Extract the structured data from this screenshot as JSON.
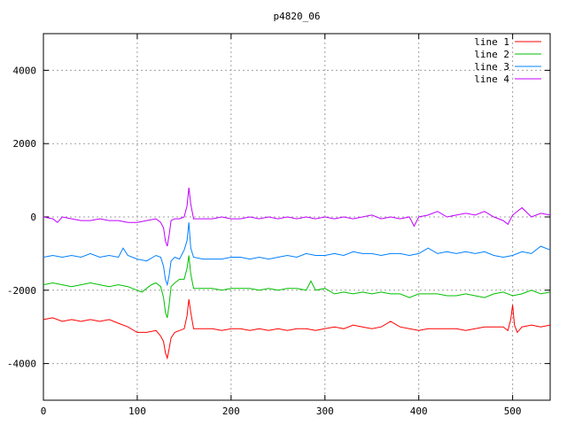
{
  "chart_data": {
    "type": "line",
    "title": "p4820_06",
    "xlabel": "",
    "ylabel": "",
    "xlim": [
      0,
      540
    ],
    "ylim": [
      -5000,
      5000
    ],
    "xticks": [
      0,
      100,
      200,
      300,
      400,
      500
    ],
    "yticks": [
      -4000,
      -2000,
      0,
      2000,
      4000
    ],
    "grid": true,
    "legend_position": "top-right",
    "series": [
      {
        "name": "line 1",
        "color": "#ff0000",
        "x": [
          0,
          10,
          20,
          30,
          40,
          50,
          60,
          70,
          80,
          90,
          100,
          110,
          120,
          125,
          128,
          130,
          132,
          134,
          136,
          140,
          145,
          150,
          153,
          155,
          157,
          160,
          170,
          180,
          190,
          200,
          210,
          220,
          230,
          240,
          250,
          260,
          270,
          280,
          290,
          300,
          310,
          320,
          330,
          340,
          350,
          360,
          370,
          380,
          390,
          400,
          410,
          420,
          430,
          440,
          450,
          460,
          470,
          480,
          490,
          495,
          498,
          500,
          502,
          505,
          510,
          520,
          530,
          540
        ],
        "y": [
          -2800,
          -2750,
          -2850,
          -2800,
          -2850,
          -2800,
          -2850,
          -2800,
          -2900,
          -3000,
          -3150,
          -3150,
          -3100,
          -3250,
          -3400,
          -3700,
          -3850,
          -3600,
          -3300,
          -3150,
          -3100,
          -3050,
          -2700,
          -2250,
          -2600,
          -3050,
          -3050,
          -3050,
          -3100,
          -3050,
          -3050,
          -3100,
          -3050,
          -3100,
          -3050,
          -3100,
          -3050,
          -3050,
          -3100,
          -3050,
          -3000,
          -3050,
          -2950,
          -3000,
          -3050,
          -3000,
          -2850,
          -3000,
          -3050,
          -3100,
          -3050,
          -3050,
          -3050,
          -3050,
          -3100,
          -3050,
          -3000,
          -3000,
          -3000,
          -3100,
          -2800,
          -2400,
          -2950,
          -3150,
          -3000,
          -2950,
          -3000,
          -2950
        ]
      },
      {
        "name": "line 2",
        "color": "#00c000",
        "x": [
          0,
          10,
          20,
          30,
          40,
          50,
          60,
          70,
          80,
          90,
          100,
          105,
          110,
          115,
          120,
          125,
          128,
          130,
          132,
          134,
          136,
          140,
          145,
          150,
          153,
          155,
          157,
          160,
          170,
          180,
          190,
          200,
          210,
          220,
          230,
          240,
          250,
          260,
          270,
          280,
          285,
          290,
          300,
          310,
          320,
          330,
          340,
          350,
          360,
          370,
          380,
          390,
          400,
          410,
          420,
          430,
          440,
          450,
          460,
          470,
          480,
          490,
          500,
          510,
          520,
          530,
          540
        ],
        "y": [
          -1850,
          -1800,
          -1850,
          -1900,
          -1850,
          -1800,
          -1850,
          -1900,
          -1850,
          -1900,
          -2000,
          -2050,
          -1950,
          -1850,
          -1800,
          -1900,
          -2200,
          -2600,
          -2750,
          -2400,
          -1900,
          -1800,
          -1700,
          -1700,
          -1400,
          -1050,
          -1550,
          -1950,
          -1950,
          -1950,
          -2000,
          -1950,
          -1950,
          -1950,
          -2000,
          -1950,
          -2000,
          -1950,
          -1950,
          -2000,
          -1750,
          -2000,
          -1950,
          -2100,
          -2050,
          -2100,
          -2050,
          -2100,
          -2050,
          -2100,
          -2100,
          -2200,
          -2100,
          -2100,
          -2100,
          -2150,
          -2150,
          -2100,
          -2150,
          -2200,
          -2100,
          -2050,
          -2150,
          -2100,
          -2000,
          -2100,
          -2050
        ]
      },
      {
        "name": "line 3",
        "color": "#0080ff",
        "x": [
          0,
          10,
          20,
          30,
          40,
          50,
          60,
          70,
          80,
          85,
          90,
          100,
          110,
          120,
          125,
          128,
          130,
          132,
          134,
          136,
          140,
          145,
          150,
          153,
          155,
          157,
          160,
          170,
          180,
          190,
          200,
          210,
          220,
          230,
          240,
          250,
          260,
          270,
          280,
          290,
          300,
          310,
          320,
          330,
          340,
          350,
          360,
          370,
          380,
          390,
          400,
          410,
          420,
          430,
          440,
          450,
          460,
          470,
          480,
          490,
          500,
          510,
          520,
          530,
          540
        ],
        "y": [
          -1100,
          -1050,
          -1100,
          -1050,
          -1100,
          -1000,
          -1100,
          -1050,
          -1100,
          -850,
          -1050,
          -1150,
          -1200,
          -1050,
          -1100,
          -1350,
          -1700,
          -1850,
          -1600,
          -1200,
          -1100,
          -1150,
          -900,
          -650,
          -150,
          -850,
          -1100,
          -1150,
          -1150,
          -1150,
          -1100,
          -1100,
          -1150,
          -1100,
          -1150,
          -1100,
          -1050,
          -1100,
          -1000,
          -1050,
          -1050,
          -1000,
          -1050,
          -950,
          -1000,
          -1000,
          -1050,
          -1000,
          -1000,
          -1050,
          -1000,
          -850,
          -1000,
          -950,
          -1000,
          -950,
          -1000,
          -950,
          -1050,
          -1100,
          -1050,
          -950,
          -1000,
          -800,
          -900
        ]
      },
      {
        "name": "line 4",
        "color": "#c000ff",
        "x": [
          0,
          10,
          15,
          20,
          30,
          40,
          50,
          60,
          70,
          80,
          90,
          100,
          110,
          120,
          125,
          128,
          130,
          132,
          134,
          136,
          140,
          145,
          150,
          153,
          155,
          157,
          160,
          170,
          180,
          190,
          200,
          210,
          220,
          230,
          240,
          250,
          260,
          270,
          280,
          290,
          300,
          310,
          320,
          330,
          340,
          350,
          360,
          370,
          380,
          390,
          395,
          400,
          410,
          420,
          430,
          440,
          450,
          460,
          470,
          480,
          490,
          495,
          500,
          510,
          520,
          530,
          540
        ],
        "y": [
          0,
          -50,
          -150,
          0,
          -50,
          -100,
          -100,
          -50,
          -100,
          -100,
          -150,
          -150,
          -100,
          -50,
          -150,
          -300,
          -650,
          -800,
          -500,
          -100,
          -50,
          -50,
          0,
          300,
          800,
          350,
          -50,
          -50,
          -50,
          0,
          -50,
          -50,
          0,
          -50,
          0,
          -50,
          0,
          -50,
          0,
          -50,
          0,
          -50,
          0,
          -50,
          0,
          50,
          -50,
          0,
          -50,
          0,
          -250,
          0,
          50,
          150,
          0,
          50,
          100,
          50,
          150,
          0,
          -100,
          -200,
          50,
          250,
          0,
          100,
          50
        ]
      }
    ]
  }
}
